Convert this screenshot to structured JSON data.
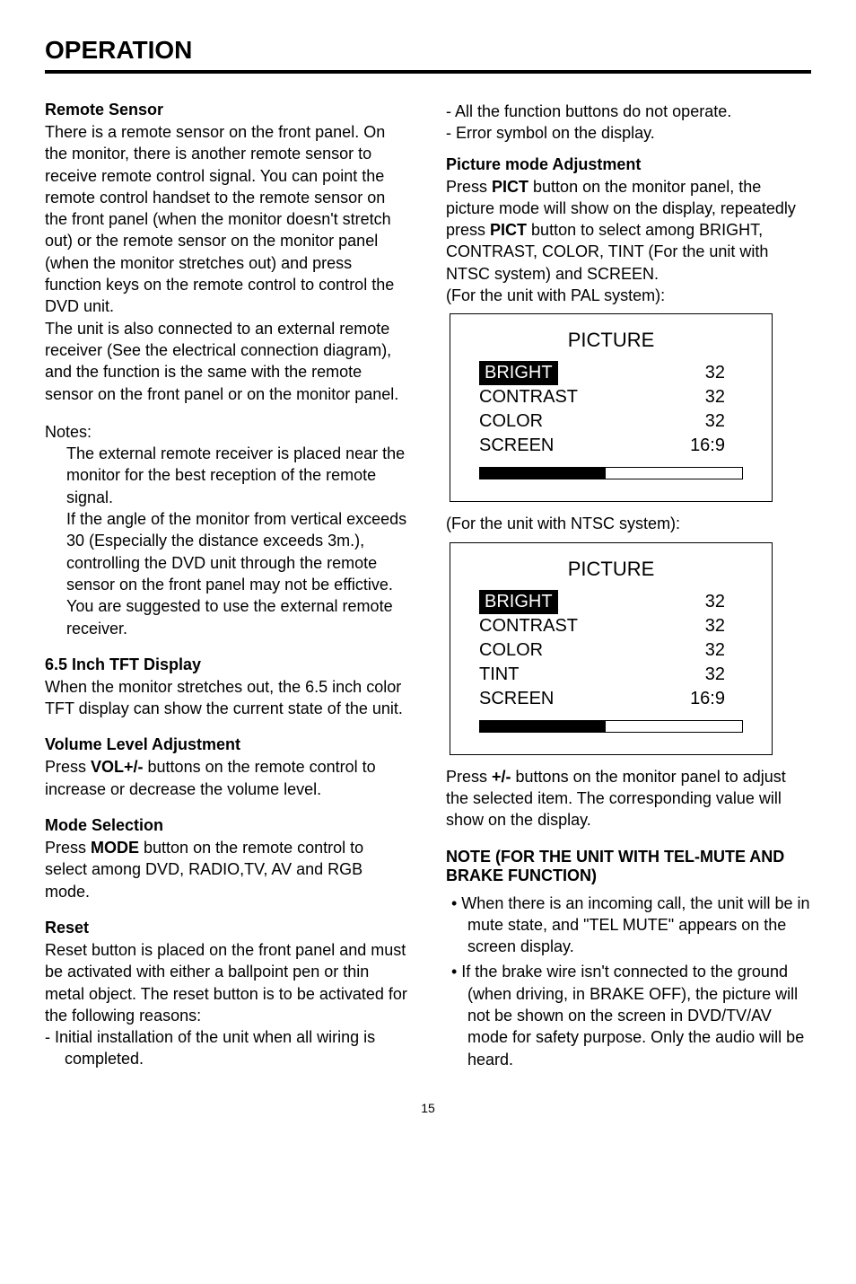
{
  "pageTitle": "OPERATION",
  "pageNumber": "15",
  "left": {
    "remoteSensor": {
      "heading": "Remote Sensor",
      "para1": "There is a remote sensor on the front panel. On the monitor, there is another remote sensor to receive remote control signal. You can point the remote control handset to the remote sensor on the front panel (when the monitor doesn't stretch out) or the remote sensor on the monitor panel (when the monitor stretches out) and press function keys on the remote control to control the DVD unit.",
      "para2": "The unit is also connected to an external remote receiver (See the electrical connection diagram), and the function is the same with the remote sensor on the front panel or on the monitor panel."
    },
    "notes": {
      "heading": "Notes:",
      "item1": "The external remote receiver is placed near the monitor for the best reception of the remote signal.",
      "item2": "If the angle of the monitor from vertical exceeds   30   (Especially the distance exceeds 3m.), controlling the DVD unit through the remote sensor on the front panel may not be effictive. You are suggested to use the external remote receiver."
    },
    "tft": {
      "heading": "6.5 Inch TFT Display",
      "body": "When the monitor stretches out, the 6.5 inch color TFT display can show the current state of the unit."
    },
    "volume": {
      "heading": "Volume Level Adjustment",
      "prefix": "Press ",
      "bold": "VOL+/-",
      "suffix": " buttons on the remote control to increase or decrease the volume level."
    },
    "mode": {
      "heading": "Mode Selection",
      "prefix": "Press ",
      "bold": "MODE",
      "suffix": " button on the remote control to select among DVD, RADIO,TV, AV and RGB mode."
    },
    "reset": {
      "heading": "Reset",
      "body": "Reset button is placed on the front panel and must be activated with either a ballpoint pen or thin metal object. The reset button is to be activated for the following reasons:",
      "dash1": "-  Initial installation of the unit when all wiring is completed."
    }
  },
  "right": {
    "dashTop1": "-  All the function buttons do not operate.",
    "dashTop2": "-  Error symbol on the display.",
    "pict": {
      "heading": "Picture mode Adjustment",
      "p1a": "Press ",
      "p1b1": "PICT",
      "p1c": " button on the monitor panel, the picture mode will show on the display, repeatedly press ",
      "p1b2": "PICT",
      "p1d": " button to select among BRIGHT, CONTRAST, COLOR, TINT (For the unit with NTSC system) and SCREEN.",
      "p2": "(For the unit with PAL system):"
    },
    "palBox": {
      "title": "PICTURE",
      "rows": [
        {
          "label": "BRIGHT",
          "value": "32",
          "selected": true
        },
        {
          "label": "CONTRAST",
          "value": "32",
          "selected": false
        },
        {
          "label": "COLOR",
          "value": "32",
          "selected": false
        },
        {
          "label": "SCREEN",
          "value": "16:9",
          "selected": false
        }
      ],
      "progressPercent": 48
    },
    "ntscCaption": "(For the unit with NTSC system):",
    "ntscBox": {
      "title": "PICTURE",
      "rows": [
        {
          "label": "BRIGHT",
          "value": "32",
          "selected": true
        },
        {
          "label": "CONTRAST",
          "value": "32",
          "selected": false
        },
        {
          "label": "COLOR",
          "value": "32",
          "selected": false
        },
        {
          "label": "TINT",
          "value": "32",
          "selected": false
        },
        {
          "label": "SCREEN",
          "value": "16:9",
          "selected": false
        }
      ],
      "progressPercent": 48
    },
    "press": {
      "a": "Press ",
      "b": "+/-",
      "c": " buttons on the monitor panel to adjust the selected item. The corresponding value will show on the display."
    },
    "noteHeading": "NOTE (FOR THE UNIT WITH TEL-MUTE AND BRAKE FUNCTION)",
    "bullet1": "• When there is an incoming call, the unit will be in mute state, and \"TEL MUTE\" appears on the screen display.",
    "bullet2": "• If the brake wire isn't connected to the ground (when driving, in BRAKE OFF), the picture will not be shown on the screen in DVD/TV/AV mode for safety purpose. Only the audio will be heard."
  }
}
